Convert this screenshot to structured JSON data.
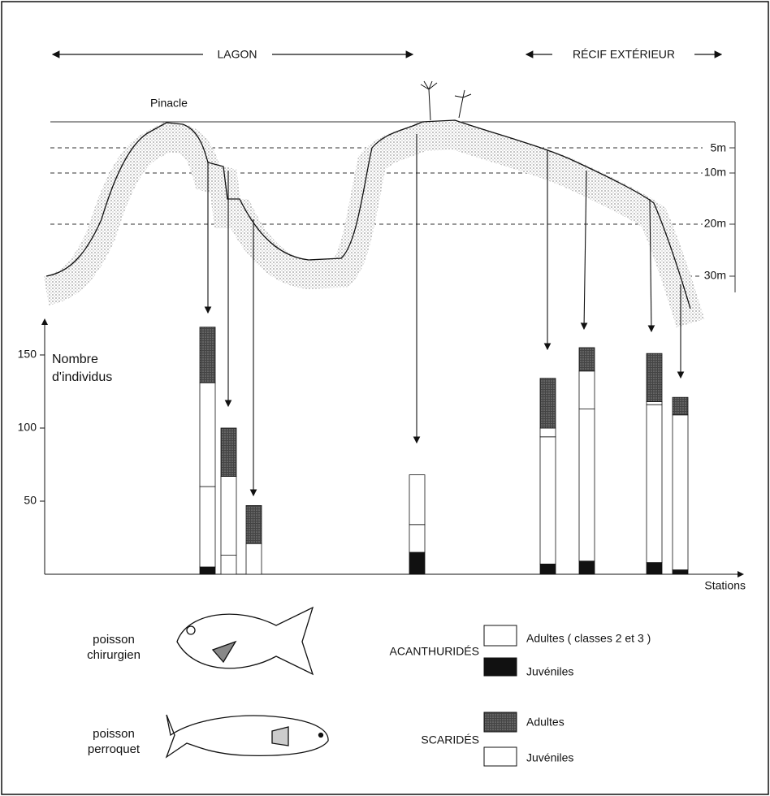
{
  "profile": {
    "zones": [
      "LAGON",
      "RÉCIF EXTÉRIEUR"
    ],
    "landmark": "Pinacle",
    "depths": [
      "5m",
      "10m",
      "20m",
      "30m"
    ]
  },
  "fish": [
    "poisson chirurgien",
    "poisson perroquet"
  ],
  "chart_data": {
    "type": "stacked_bar",
    "y_label": "Nombre d'individus",
    "x_label": "Stations",
    "categories": [
      null,
      null,
      null,
      null,
      null,
      null,
      null,
      null
    ],
    "groups": [
      "ACANTHURIDÉS",
      "SCARIDÉS"
    ],
    "series": [
      {
        "name": "Juvéniles",
        "color": "#111111",
        "values": [
          5,
          0,
          0,
          15,
          7,
          9,
          8,
          3
        ]
      },
      {
        "name": "Adultes ( classes 2 et 3 )",
        "color": "#ffffff",
        "values": [
          55,
          13,
          21,
          19,
          87,
          104,
          108,
          106
        ]
      },
      {
        "name": "Juvéniles",
        "color": "#ffffff",
        "values": [
          71,
          54,
          0,
          34,
          6,
          26,
          2,
          0
        ]
      },
      {
        "name": "Adultes",
        "color": "#555555",
        "values": [
          38,
          33,
          26,
          0,
          34,
          16,
          33,
          12
        ]
      }
    ],
    "ylim": [
      0,
      170
    ],
    "yticks": [
      50,
      100,
      150
    ],
    "grid": false
  }
}
